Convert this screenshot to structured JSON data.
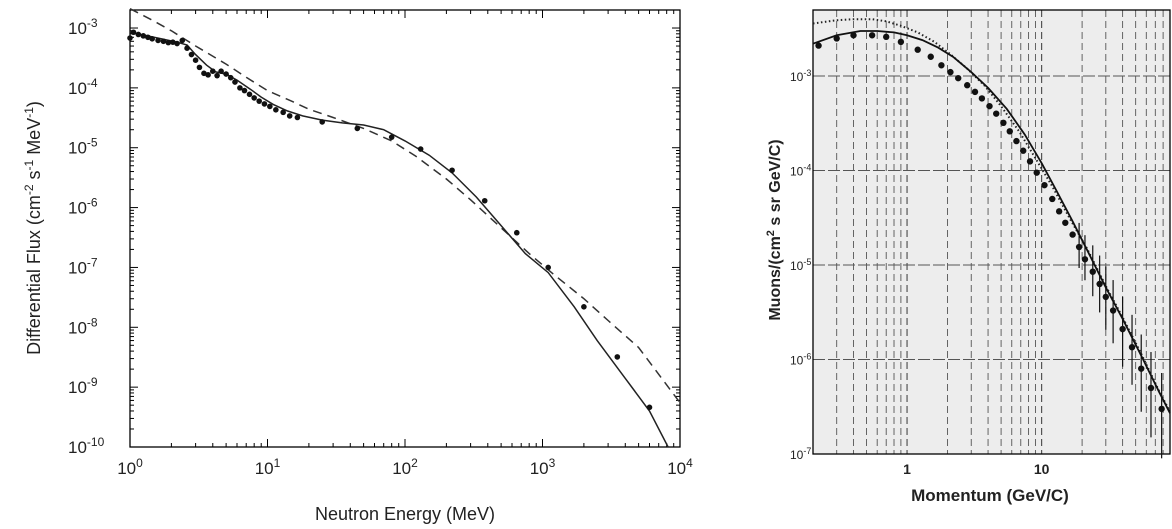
{
  "chart_data": [
    {
      "type": "line",
      "xlabel": "Neutron Energy  (MeV)",
      "ylabel": "Differential Flux  (cm",
      "ylabel_parts": [
        "-2",
        " s",
        "-1",
        " MeV",
        "-1",
        ")"
      ],
      "x_scale": "log",
      "y_scale": "log",
      "xlim": [
        1,
        10000
      ],
      "ylim": [
        1e-10,
        0.002
      ],
      "x_ticks": [
        {
          "value": 1,
          "base": "10",
          "exp": "0"
        },
        {
          "value": 10,
          "base": "10",
          "exp": "1"
        },
        {
          "value": 100,
          "base": "10",
          "exp": "2"
        },
        {
          "value": 1000,
          "base": "10",
          "exp": "3"
        },
        {
          "value": 10000,
          "base": "10",
          "exp": "4"
        }
      ],
      "y_ticks": [
        {
          "value": 0.001,
          "base": "10",
          "exp": "-3"
        },
        {
          "value": 0.0001,
          "base": "10",
          "exp": "-4"
        },
        {
          "value": 1e-05,
          "base": "10",
          "exp": "-5"
        },
        {
          "value": 1e-06,
          "base": "10",
          "exp": "-6"
        },
        {
          "value": 1e-07,
          "base": "10",
          "exp": "-7"
        },
        {
          "value": 1e-08,
          "base": "10",
          "exp": "-8"
        },
        {
          "value": 1e-09,
          "base": "10",
          "exp": "-9"
        },
        {
          "value": 1e-10,
          "base": "10",
          "exp": "-10"
        }
      ],
      "grid": false,
      "series": [
        {
          "style": "markers",
          "x": [
            1.0,
            1.06,
            1.15,
            1.25,
            1.35,
            1.45,
            1.6,
            1.75,
            1.9,
            2.05,
            2.2,
            2.4,
            2.6,
            2.8,
            3.0,
            3.2,
            3.45,
            3.7,
            4.0,
            4.3,
            4.6,
            5.0,
            5.4,
            5.8,
            6.3,
            6.8,
            7.4,
            8.0,
            8.7,
            9.5,
            10.4,
            11.5,
            13.0,
            14.5,
            16.5,
            25,
            45,
            80,
            130,
            220,
            380,
            650,
            1100,
            2000,
            3500,
            6000
          ],
          "y": [
            0.00068,
            0.00085,
            0.00078,
            0.00074,
            0.0007,
            0.00066,
            0.00062,
            0.0006,
            0.00057,
            0.00058,
            0.00055,
            0.00062,
            0.00046,
            0.00036,
            0.00029,
            0.00022,
            0.000175,
            0.000165,
            0.00019,
            0.00016,
            0.00019,
            0.00017,
            0.000148,
            0.000125,
            0.0001,
            9e-05,
            7.8e-05,
            6.8e-05,
            6e-05,
            5.4e-05,
            4.9e-05,
            4.3e-05,
            3.9e-05,
            3.4e-05,
            3.2e-05,
            2.7e-05,
            2.1e-05,
            1.5e-05,
            9.5e-06,
            4.2e-06,
            1.3e-06,
            3.8e-07,
            1e-07,
            2.2e-08,
            3.2e-09,
            4.6e-10
          ]
        },
        {
          "style": "solid",
          "x": [
            1.0,
            1.3,
            1.7,
            2.2,
            2.6,
            3.0,
            3.6,
            4.2,
            5.0,
            6.0,
            7.5,
            9.0,
            11,
            14,
            18,
            25,
            35,
            50,
            70,
            100,
            150,
            220,
            330,
            500,
            750,
            1100,
            1700,
            2500,
            4000,
            6000,
            8200
          ],
          "y": [
            0.00085,
            0.00075,
            0.00066,
            0.00058,
            0.00052,
            0.00036,
            0.00024,
            0.000185,
            0.00017,
            0.000135,
            9.5e-05,
            7e-05,
            5.3e-05,
            4.1e-05,
            3.4e-05,
            2.9e-05,
            2.6e-05,
            2.4e-05,
            2e-05,
            1.3e-05,
            7.5e-06,
            3.8e-06,
            1.5e-06,
            5e-07,
            1.7e-07,
            8.2e-08,
            2.2e-08,
            6e-09,
            1.4e-09,
            4e-10,
            1e-10
          ]
        },
        {
          "style": "dashed",
          "x": [
            1.0,
            1.5,
            2.0,
            3.0,
            5.0,
            7.0,
            10,
            15,
            20,
            30,
            50,
            80,
            120,
            200,
            300,
            500,
            800,
            1200,
            2000,
            3000,
            5000,
            10000
          ],
          "y": [
            0.0021,
            0.0013,
            0.0009,
            0.0005,
            0.00025,
            0.00015,
            9e-05,
            6e-05,
            4.4e-05,
            3.2e-05,
            2.1e-05,
            1.3e-05,
            7.2e-06,
            3e-06,
            1.35e-06,
            4.6e-07,
            1.7e-07,
            7.7e-08,
            3e-08,
            1.3e-08,
            4.6e-09,
            5.5e-10
          ]
        }
      ]
    },
    {
      "type": "line",
      "xlabel": "Momentum (GeV/C)",
      "ylabel": "Muons/(cm",
      "ylabel_parts": [
        "2",
        " s sr GeV/C)"
      ],
      "x_scale": "log",
      "y_scale": "log",
      "xlim": [
        0.2,
        90
      ],
      "ylim": [
        1e-07,
        0.005
      ],
      "x_ticks": [
        {
          "value": 1,
          "label": "1"
        },
        {
          "value": 10,
          "label": "10"
        }
      ],
      "y_ticks": [
        {
          "value": 0.001,
          "base": "10",
          "exp": "-3"
        },
        {
          "value": 0.0001,
          "base": "10",
          "exp": "-4"
        },
        {
          "value": 1e-05,
          "base": "10",
          "exp": "-5"
        },
        {
          "value": 1e-06,
          "base": "10",
          "exp": "-6"
        },
        {
          "value": 1e-07,
          "base": "10",
          "exp": "-7"
        }
      ],
      "grid": true,
      "series": [
        {
          "style": "markers",
          "x": [
            0.22,
            0.3,
            0.4,
            0.55,
            0.7,
            0.9,
            1.2,
            1.5,
            1.8,
            2.1,
            2.4,
            2.8,
            3.2,
            3.6,
            4.1,
            4.6,
            5.2,
            5.8,
            6.5,
            7.3,
            8.2,
            9.2,
            10.5,
            12,
            13.5,
            15,
            17,
            19,
            21,
            24,
            27,
            30,
            34,
            40,
            47,
            55,
            65,
            78
          ],
          "y": [
            0.0021,
            0.0025,
            0.0027,
            0.0027,
            0.0026,
            0.0023,
            0.0019,
            0.0016,
            0.0013,
            0.0011,
            0.00095,
            0.0008,
            0.00068,
            0.00058,
            0.00048,
            0.0004,
            0.00032,
            0.00026,
            0.000205,
            0.000162,
            0.000125,
            9.5e-05,
            7e-05,
            5e-05,
            3.7e-05,
            2.8e-05,
            2.1e-05,
            1.55e-05,
            1.15e-05,
            8.5e-06,
            6.3e-06,
            4.6e-06,
            3.3e-06,
            2.1e-06,
            1.35e-06,
            8e-07,
            5e-07,
            3e-07
          ],
          "err": [
            0,
            0,
            0,
            0,
            0,
            0,
            0,
            0,
            0,
            0,
            0,
            0,
            0,
            0,
            0,
            0,
            0,
            0,
            0,
            0,
            0,
            0,
            0,
            0,
            0,
            0,
            0,
            0.4,
            0.4,
            0.45,
            0.5,
            0.55,
            0.55,
            0.6,
            0.6,
            0.65,
            0.7,
            0.7
          ]
        },
        {
          "style": "solid",
          "x": [
            0.2,
            0.3,
            0.45,
            0.6,
            0.8,
            1.0,
            1.3,
            1.7,
            2.2,
            3.0,
            4.0,
            5.5,
            7.5,
            10,
            13,
            17,
            22,
            30,
            40,
            55,
            75,
            90
          ],
          "y": [
            0.0022,
            0.0027,
            0.003,
            0.003,
            0.0029,
            0.0027,
            0.0024,
            0.002,
            0.0016,
            0.0011,
            0.00075,
            0.00045,
            0.00024,
            0.00012,
            6e-05,
            2.9e-05,
            1.4e-05,
            5.8e-06,
            2.7e-06,
            1.1e-06,
            4.5e-07,
            2.7e-07
          ]
        },
        {
          "style": "dotted",
          "x": [
            0.2,
            0.3,
            0.4,
            0.55,
            0.7,
            0.9,
            1.2,
            1.6,
            2.1,
            2.8,
            3.8,
            5.0,
            6.8,
            9.0,
            12,
            16,
            22,
            30,
            40,
            55,
            75,
            90
          ],
          "y": [
            0.0036,
            0.0039,
            0.004,
            0.004,
            0.0038,
            0.0034,
            0.0029,
            0.0023,
            0.0017,
            0.0012,
            0.00078,
            0.00048,
            0.00026,
            0.000135,
            6.8e-05,
            3.2e-05,
            1.45e-05,
            6e-06,
            2.8e-06,
            1.15e-06,
            4.6e-07,
            2.8e-07
          ]
        }
      ]
    }
  ]
}
